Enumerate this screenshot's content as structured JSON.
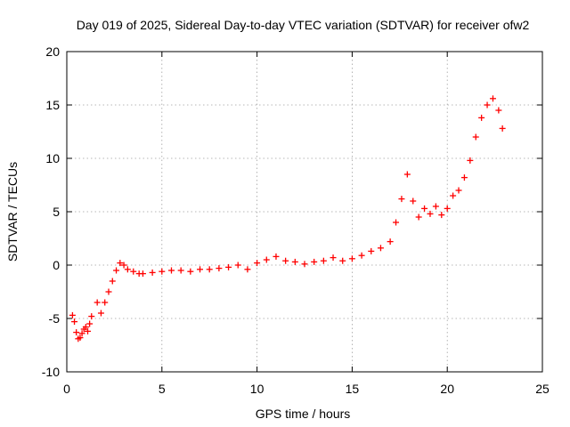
{
  "chart_data": {
    "type": "scatter",
    "title": "Day 019 of 2025, Sidereal Day-to-day VTEC variation (SDTVAR) for receiver ofw2",
    "xlabel": "GPS time / hours",
    "ylabel": "SDTVAR / TECUs",
    "xlim": [
      0,
      25
    ],
    "ylim": [
      -10,
      20
    ],
    "xticks": [
      0,
      5,
      10,
      15,
      20,
      25
    ],
    "yticks": [
      -10,
      -5,
      0,
      5,
      10,
      15,
      20
    ],
    "xtick_labels": [
      "0",
      "5",
      "10",
      "15",
      "20",
      "25"
    ],
    "ytick_labels": [
      "-10",
      "-5",
      "0",
      "5",
      "10",
      "15",
      "20"
    ],
    "grid": true,
    "marker": "+",
    "series": [
      {
        "name": "SDTVAR",
        "color": "#ff0000",
        "x": [
          0.3,
          0.4,
          0.5,
          0.6,
          0.7,
          0.8,
          0.9,
          1.0,
          1.1,
          1.2,
          1.3,
          1.6,
          1.8,
          2.0,
          2.2,
          2.4,
          2.6,
          2.8,
          3.0,
          3.2,
          3.5,
          3.8,
          4.0,
          4.5,
          5.0,
          5.5,
          6.0,
          6.5,
          7.0,
          7.5,
          8.0,
          8.5,
          9.0,
          9.5,
          10.0,
          10.5,
          11.0,
          11.5,
          12.0,
          12.5,
          13.0,
          13.5,
          14.0,
          14.5,
          15.0,
          15.5,
          16.0,
          16.5,
          17.0,
          17.3,
          17.6,
          17.9,
          18.2,
          18.5,
          18.8,
          19.1,
          19.4,
          19.7,
          20.0,
          20.3,
          20.6,
          20.9,
          21.2,
          21.5,
          21.8,
          22.1,
          22.4,
          22.7,
          22.9
        ],
        "y": [
          -4.7,
          -5.3,
          -6.3,
          -6.9,
          -6.8,
          -6.4,
          -6.0,
          -5.8,
          -6.2,
          -5.5,
          -4.8,
          -3.5,
          -4.5,
          -3.5,
          -2.5,
          -1.5,
          -0.5,
          0.2,
          0.0,
          -0.4,
          -0.6,
          -0.8,
          -0.8,
          -0.7,
          -0.6,
          -0.5,
          -0.5,
          -0.6,
          -0.4,
          -0.4,
          -0.3,
          -0.2,
          0.0,
          -0.4,
          0.2,
          0.5,
          0.8,
          0.4,
          0.3,
          0.1,
          0.3,
          0.4,
          0.7,
          0.4,
          0.6,
          0.9,
          1.3,
          1.6,
          2.2,
          4.0,
          6.2,
          8.5,
          6.0,
          4.5,
          5.3,
          4.8,
          5.5,
          4.7,
          5.3,
          6.5,
          7.0,
          8.2,
          9.8,
          12.0,
          13.8,
          15.0,
          15.6,
          14.5,
          12.8
        ]
      }
    ]
  }
}
